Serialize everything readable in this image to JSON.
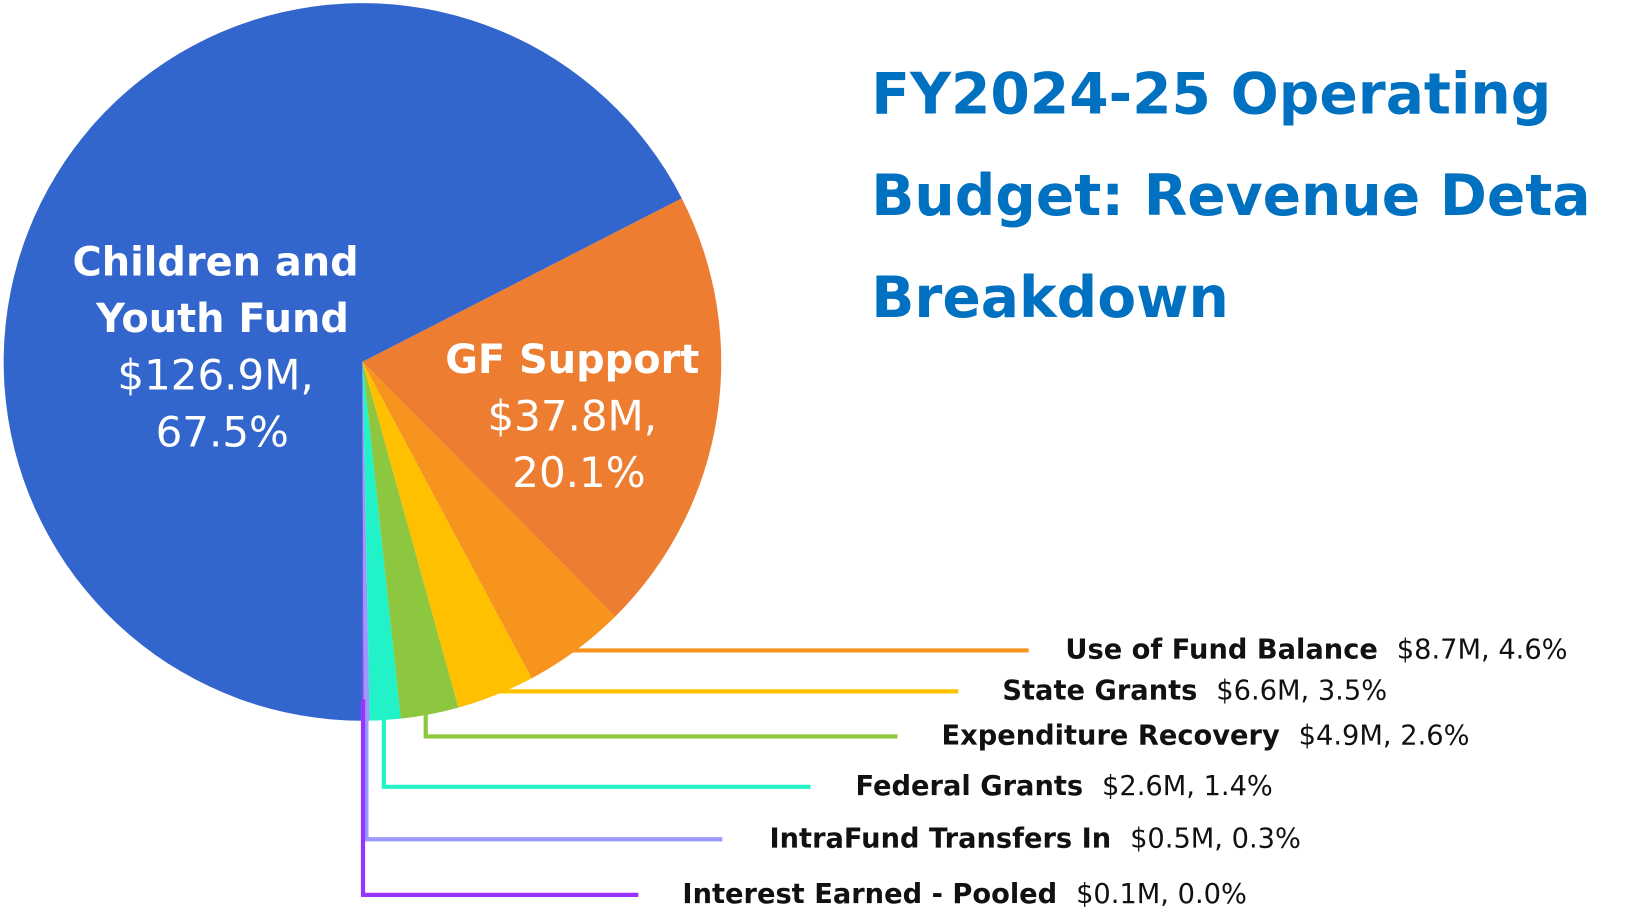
{
  "chart_data": {
    "type": "pie",
    "title_lines": [
      "FY2024-25 Operating",
      "Budget: Revenue Deta",
      "Breakdown"
    ],
    "categories": [
      "Children and Youth Fund",
      "GF Support",
      "Use of Fund Balance",
      "State Grants",
      "Expenditure Recovery",
      "Federal Grants",
      "IntraFund Transfers In",
      "Interest Earned - Pooled"
    ],
    "values": [
      126.9,
      37.8,
      8.7,
      6.6,
      4.9,
      2.6,
      0.5,
      0.1
    ],
    "value_labels": [
      "$126.9M, 67.5%",
      "$37.8M, 20.1%",
      "$8.7M, 4.6%",
      "$6.6M, 3.5%",
      "$4.9M, 2.6%",
      "$2.6M, 1.4%",
      "$0.5M, 0.3%",
      "$0.1M, 0.0%"
    ],
    "colors": [
      "#3366cc",
      "#ed7d31",
      "#f7941d",
      "#ffc000",
      "#8dc63f",
      "#22f2c8",
      "#9999ff",
      "#9933ff"
    ]
  }
}
